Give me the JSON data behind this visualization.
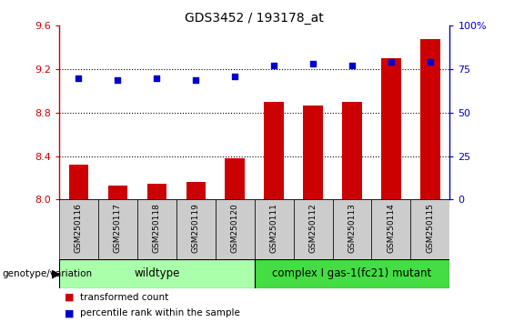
{
  "title": "GDS3452 / 193178_at",
  "samples": [
    "GSM250116",
    "GSM250117",
    "GSM250118",
    "GSM250119",
    "GSM250120",
    "GSM250111",
    "GSM250112",
    "GSM250113",
    "GSM250114",
    "GSM250115"
  ],
  "bar_values": [
    8.32,
    8.13,
    8.15,
    8.16,
    8.38,
    8.9,
    8.87,
    8.9,
    9.3,
    9.48
  ],
  "scatter_values": [
    70,
    69,
    70,
    69,
    71,
    77,
    78,
    77,
    79,
    79
  ],
  "ylim_left": [
    8.0,
    9.6
  ],
  "ylim_right": [
    0,
    100
  ],
  "yticks_left": [
    8.0,
    8.4,
    8.8,
    9.2,
    9.6
  ],
  "yticks_right": [
    0,
    25,
    50,
    75,
    100
  ],
  "ytick_labels_right": [
    "0",
    "25",
    "50",
    "75",
    "100%"
  ],
  "bar_color": "#CC0000",
  "scatter_color": "#0000CC",
  "wildtype_color": "#AAFFAA",
  "mutant_color": "#44DD44",
  "xtick_bg_color": "#CCCCCC",
  "wildtype_label": "wildtype",
  "mutant_label": "complex I gas-1(fc21) mutant",
  "wildtype_count": 5,
  "mutant_count": 5,
  "legend_bar_label": "transformed count",
  "legend_scatter_label": "percentile rank within the sample",
  "genotype_label": "genotype/variation",
  "bar_bottom": 8.0,
  "background_color": "#ffffff"
}
